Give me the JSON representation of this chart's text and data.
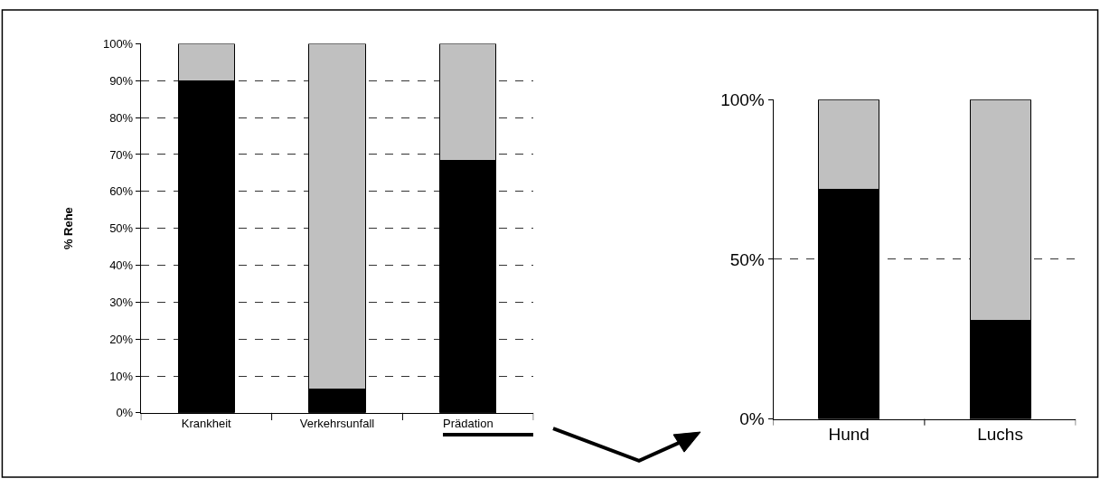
{
  "chart_data": [
    {
      "type": "bar",
      "stacked": true,
      "ylabel": "% Rehe",
      "categories": [
        "Krankheit",
        "Verkehrsunfall",
        "Prädation"
      ],
      "series": [
        {
          "color": "#000000",
          "values": [
            90,
            6.5,
            68.5
          ]
        },
        {
          "color": "#c0c0c0",
          "values": [
            10,
            93.5,
            31.5
          ]
        }
      ],
      "ylim": [
        0,
        100
      ],
      "yticks": [
        {
          "value": 0,
          "label": "0%"
        },
        {
          "value": 10,
          "label": "10%"
        },
        {
          "value": 20,
          "label": "20%"
        },
        {
          "value": 30,
          "label": "30%"
        },
        {
          "value": 40,
          "label": "40%"
        },
        {
          "value": 50,
          "label": "50%"
        },
        {
          "value": 60,
          "label": "60%"
        },
        {
          "value": 70,
          "label": "70%"
        },
        {
          "value": 80,
          "label": "80%"
        },
        {
          "value": 90,
          "label": "90%"
        },
        {
          "value": 100,
          "label": "100%"
        }
      ],
      "grid": "y"
    },
    {
      "type": "bar",
      "stacked": true,
      "categories": [
        "Hund",
        "Luchs"
      ],
      "series": [
        {
          "color": "#000000",
          "values": [
            72,
            31
          ]
        },
        {
          "color": "#c0c0c0",
          "values": [
            28,
            69
          ]
        }
      ],
      "ylim": [
        0,
        100
      ],
      "yticks": [
        {
          "value": 0,
          "label": "0%"
        },
        {
          "value": 50,
          "label": "50%"
        },
        {
          "value": 100,
          "label": "100%"
        }
      ],
      "grid": "y"
    }
  ]
}
